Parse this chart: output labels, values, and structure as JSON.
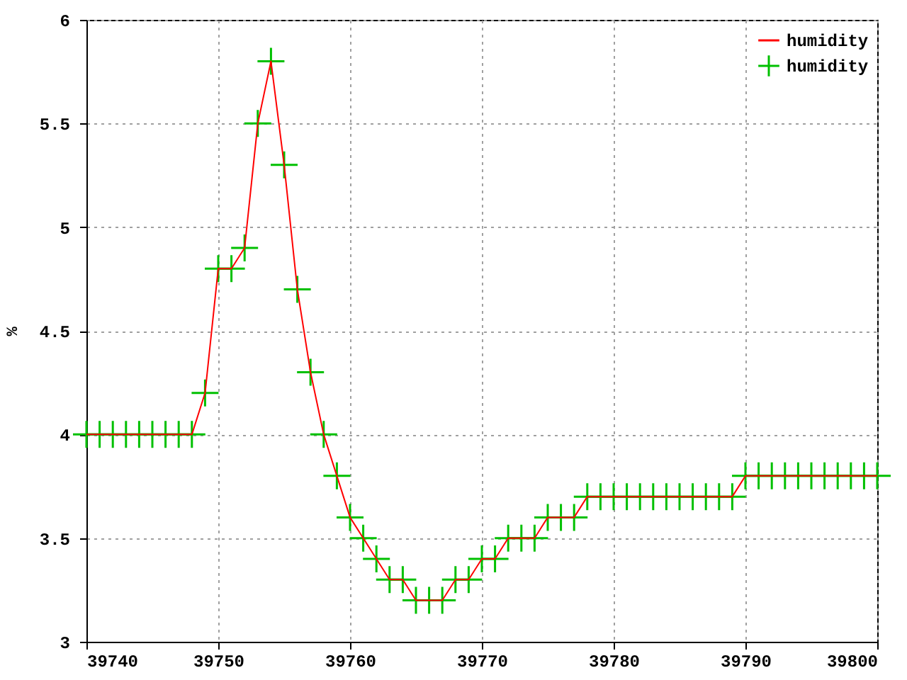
{
  "chart_data": {
    "type": "line",
    "ylabel": "%",
    "x": [
      39740,
      39741,
      39742,
      39743,
      39744,
      39745,
      39746,
      39747,
      39748,
      39749,
      39750,
      39751,
      39752,
      39753,
      39754,
      39755,
      39756,
      39757,
      39758,
      39759,
      39760,
      39761,
      39762,
      39763,
      39764,
      39765,
      39766,
      39767,
      39768,
      39769,
      39770,
      39771,
      39772,
      39773,
      39774,
      39775,
      39776,
      39777,
      39778,
      39779,
      39780,
      39781,
      39782,
      39783,
      39784,
      39785,
      39786,
      39787,
      39788,
      39789,
      39790,
      39791,
      39792,
      39793,
      39794,
      39795,
      39796,
      39797,
      39798,
      39799,
      39800
    ],
    "series": [
      {
        "name": "humidity",
        "color": "#ff0000",
        "line_style": "solid",
        "values": [
          4,
          4,
          4,
          4,
          4,
          4,
          4,
          4,
          4,
          4.2,
          4.8,
          4.8,
          4.9,
          5.5,
          5.8,
          5.3,
          4.7,
          4.3,
          4,
          3.8,
          3.6,
          3.5,
          3.4,
          3.3,
          3.3,
          3.2,
          3.2,
          3.2,
          3.3,
          3.3,
          3.4,
          3.4,
          3.5,
          3.5,
          3.5,
          3.6,
          3.6,
          3.6,
          3.7,
          3.7,
          3.7,
          3.7,
          3.7,
          3.7,
          3.7,
          3.7,
          3.7,
          3.7,
          3.7,
          3.7,
          3.8,
          3.8,
          3.8,
          3.8,
          3.8,
          3.8,
          3.8,
          3.8,
          3.8,
          3.8,
          3.8
        ]
      },
      {
        "name": "humidity",
        "type": "scatter",
        "color": "#00c000",
        "marker": "cross",
        "values": [
          4,
          4,
          4,
          4,
          4,
          4,
          4,
          4,
          4,
          4.2,
          4.8,
          4.8,
          4.9,
          5.5,
          5.8,
          5.3,
          4.7,
          4.3,
          4,
          3.8,
          3.6,
          3.5,
          3.4,
          3.3,
          3.3,
          3.2,
          3.2,
          3.2,
          3.3,
          3.3,
          3.4,
          3.4,
          3.5,
          3.5,
          3.5,
          3.6,
          3.6,
          3.6,
          3.7,
          3.7,
          3.7,
          3.7,
          3.7,
          3.7,
          3.7,
          3.7,
          3.7,
          3.7,
          3.7,
          3.7,
          3.8,
          3.8,
          3.8,
          3.8,
          3.8,
          3.8,
          3.8,
          3.8,
          3.8,
          3.8,
          3.8
        ]
      }
    ],
    "xlim": [
      39740,
      39800
    ],
    "ylim": [
      3,
      6
    ],
    "xticks": [
      39740,
      39750,
      39760,
      39770,
      39780,
      39790,
      39800
    ],
    "yticks": [
      3,
      3.5,
      4,
      4.5,
      5,
      5.5,
      6
    ],
    "grid": true,
    "legend": "top right"
  }
}
